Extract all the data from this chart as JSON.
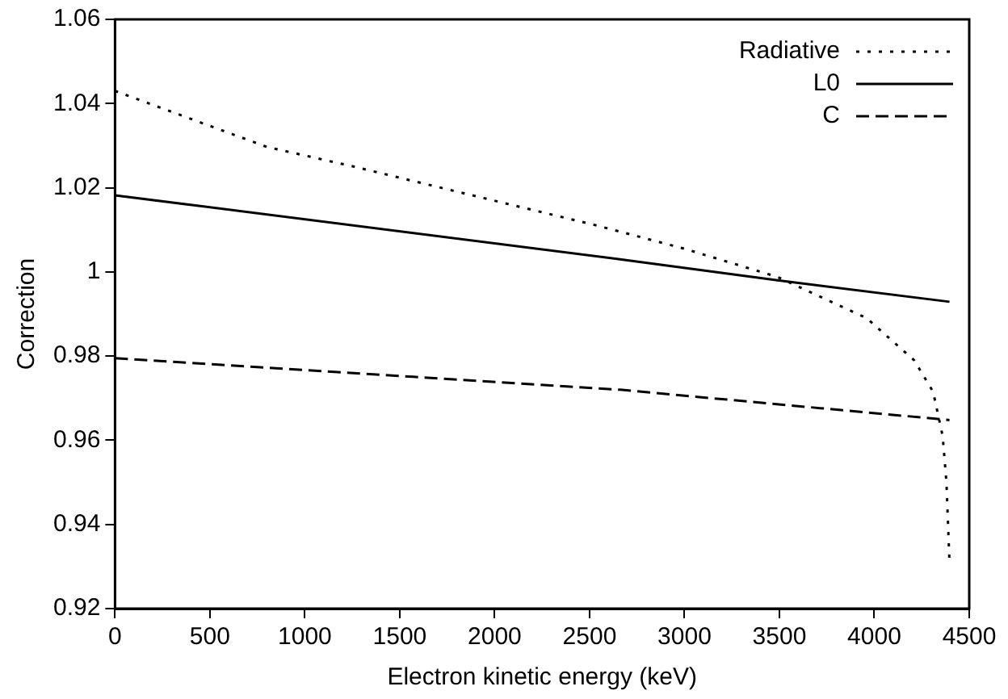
{
  "chart_data": {
    "type": "line",
    "xlabel": "Electron kinetic energy (keV)",
    "ylabel": "Correction",
    "xlim": [
      0,
      4500
    ],
    "xticks": [
      0,
      500,
      1000,
      1500,
      2000,
      2500,
      3000,
      3500,
      4000,
      4500
    ],
    "ylim": [
      0.92,
      1.06
    ],
    "yticks": [
      0.92,
      0.94,
      0.96,
      0.98,
      1,
      1.02,
      1.04,
      1.06
    ],
    "grid": false,
    "legend": "top right",
    "marker": "none",
    "series": [
      {
        "name": "Radiative",
        "color": "#000000",
        "line_style": "dotted",
        "x": [
          0,
          800,
          1260,
          2540,
          3000,
          3490,
          3960,
          4210,
          4310,
          4360,
          4380,
          4396
        ],
        "values": [
          1.043,
          1.0297,
          1.025,
          1.011,
          1.0055,
          0.9988,
          0.989,
          0.979,
          0.9715,
          0.961,
          0.95,
          0.931
        ]
      },
      {
        "name": "L0",
        "color": "#000000",
        "line_style": "solid",
        "x": [
          0,
          2660,
          3490,
          4396
        ],
        "values": [
          1.0182,
          1.003,
          0.998,
          0.9929
        ]
      },
      {
        "name": "C",
        "color": "#000000",
        "line_style": "dashed",
        "x": [
          0,
          2660,
          4396
        ],
        "values": [
          0.9795,
          0.972,
          0.9648
        ]
      }
    ]
  }
}
